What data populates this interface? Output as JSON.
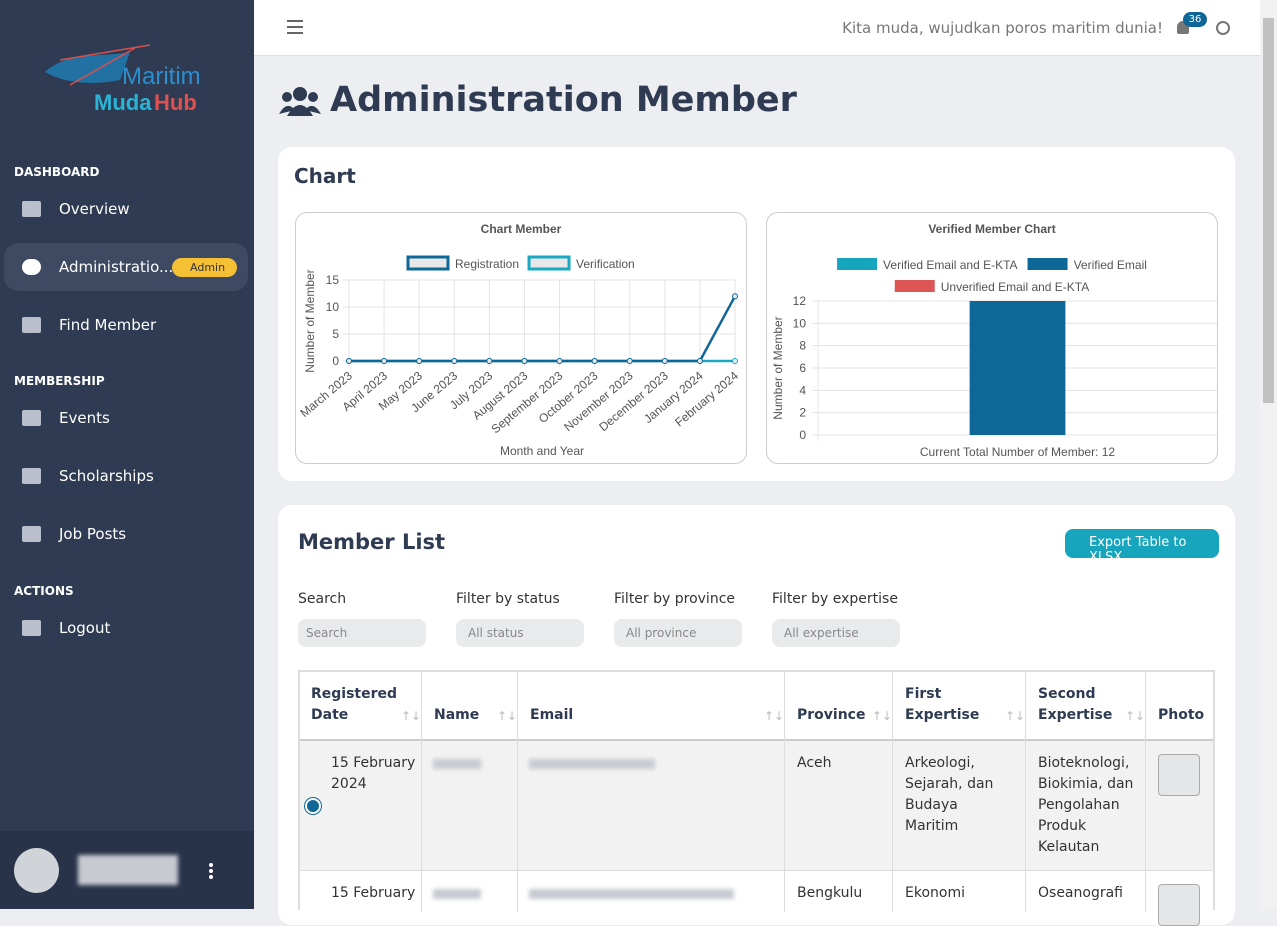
{
  "topbar": {
    "tagline": "Kita muda, wujudkan poros maritim dunia!",
    "notifications": "36"
  },
  "sidebar": {
    "logo": {
      "line1": "Maritim",
      "line2a": "Muda",
      "line2b": "Hub"
    },
    "sections": [
      {
        "title": "DASHBOARD",
        "items": [
          {
            "label": "Overview"
          },
          {
            "label": "Administratio...",
            "badge": "Admin"
          },
          {
            "label": "Find Member"
          }
        ]
      },
      {
        "title": "MEMBERSHIP",
        "items": [
          {
            "label": "Events"
          },
          {
            "label": "Scholarships"
          },
          {
            "label": "Job Posts"
          }
        ]
      },
      {
        "title": "ACTIONS",
        "items": [
          {
            "label": "Logout"
          }
        ]
      }
    ]
  },
  "page_title": "Administration Member",
  "chart_card_title": "Chart",
  "chart_data": [
    {
      "type": "line",
      "title": "Chart Member",
      "categories": [
        "March 2023",
        "April 2023",
        "May 2023",
        "June 2023",
        "July 2023",
        "August 2023",
        "September 2023",
        "October 2023",
        "November 2023",
        "December 2023",
        "January 2024",
        "February 2024"
      ],
      "series": [
        {
          "name": "Registration",
          "color": "#0f6797",
          "values": [
            0,
            0,
            0,
            0,
            0,
            0,
            0,
            0,
            0,
            0,
            0,
            12
          ]
        },
        {
          "name": "Verification",
          "color": "#1aa9c1",
          "values": [
            0,
            0,
            0,
            0,
            0,
            0,
            0,
            0,
            0,
            0,
            0,
            0
          ]
        }
      ],
      "ylim": [
        0,
        15
      ],
      "yticks": [
        0,
        5,
        10,
        15
      ],
      "grid": true,
      "x_label": "Month and Year",
      "y_label": "Number of Member"
    },
    {
      "type": "bar",
      "title": "Verified Member Chart",
      "categories": [
        "Current Total Number of Member: 12"
      ],
      "series": [
        {
          "name": "Verified Email and E-KTA",
          "color": "#17a5bd",
          "values": [
            0
          ]
        },
        {
          "name": "Verified Email",
          "color": "#0f6797",
          "values": [
            12
          ]
        },
        {
          "name": "Unverified Email and E-KTA",
          "color": "#dc5656",
          "values": [
            0
          ]
        }
      ],
      "ylim": [
        0,
        12
      ],
      "yticks": [
        0,
        2,
        4,
        6,
        8,
        10,
        12
      ],
      "grid": true,
      "y_label": "Number of Member"
    }
  ],
  "member_list": {
    "title": "Member List",
    "export_button": "Export Table to XLSX",
    "filters": [
      {
        "label": "Search",
        "placeholder": "Search"
      },
      {
        "label": "Filter by status",
        "placeholder": "All status"
      },
      {
        "label": "Filter by province",
        "placeholder": "All province"
      },
      {
        "label": "Filter by expertise",
        "placeholder": "All expertise"
      }
    ],
    "headers": [
      "Registered Date",
      "Name",
      "Email",
      "Province",
      "First Expertise",
      "Second Expertise",
      "Photo"
    ],
    "rows": [
      {
        "date": "15 February 2024",
        "province": "Aceh",
        "first": "Arkeologi, Sejarah, dan Budaya Maritim",
        "second": "Bioteknologi, Biokimia, dan Pengolahan Produk Kelautan"
      },
      {
        "date": "15 February",
        "province": "Bengkulu",
        "first": "Ekonomi",
        "second": "Oseanografi"
      }
    ]
  }
}
